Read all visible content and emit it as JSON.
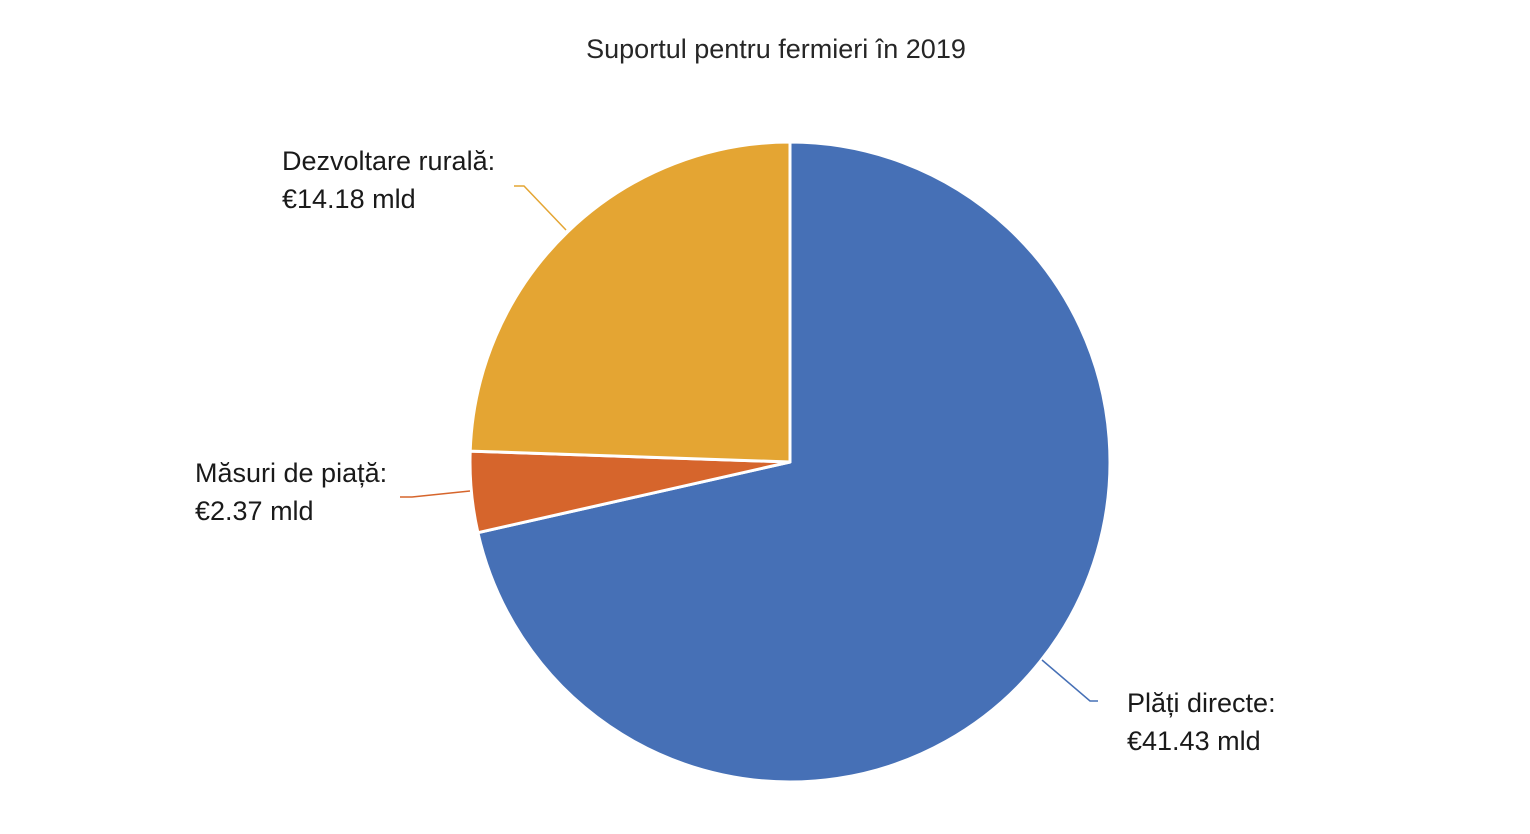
{
  "chart_data": {
    "type": "pie",
    "title": "Suportul pentru fermieri în 2019",
    "slices": [
      {
        "name": "Plăți directe",
        "label_line1": "Plăți directe:",
        "label_line2": "€41.43 mld",
        "value": 41.43,
        "color": "#4670B6"
      },
      {
        "name": "Măsuri de piață",
        "label_line1": "Măsuri de piață:",
        "label_line2": "€2.37 mld",
        "value": 2.37,
        "color": "#D6652C"
      },
      {
        "name": "Dezvoltare rurală",
        "label_line1": "Dezvoltare rurală:",
        "label_line2": "€14.18 mld",
        "value": 14.18,
        "color": "#E4A533"
      }
    ],
    "start_angle": "12 o'clock",
    "direction": "clockwise",
    "legend": "none"
  }
}
